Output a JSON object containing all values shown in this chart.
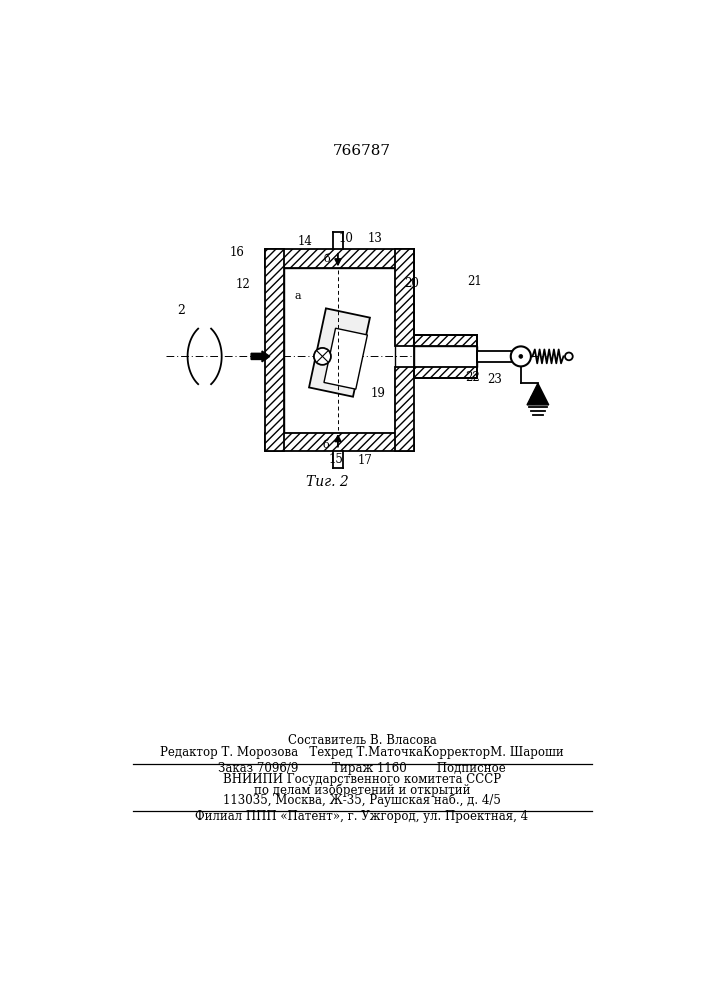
{
  "patent_number": "766787",
  "fig_label": "Τиг. 2",
  "background_color": "#ffffff",
  "line_color": "#000000",
  "footer_lines": [
    "Составитель В. Власова",
    "Редактор Т. Морозова   Техред Т.МаточкаКорректорМ. Шароши",
    "Заказ 7096/9         Тираж 1160        Подписное",
    "ВНИИПИ Государственного комитета СССР",
    "по делам изобретений и открытий",
    "113035, Москва, Ж-35, Раушская наб., д. 4/5",
    "Филиал ППП «Патент», г. Ужгород, ул. Проектная, 4"
  ]
}
